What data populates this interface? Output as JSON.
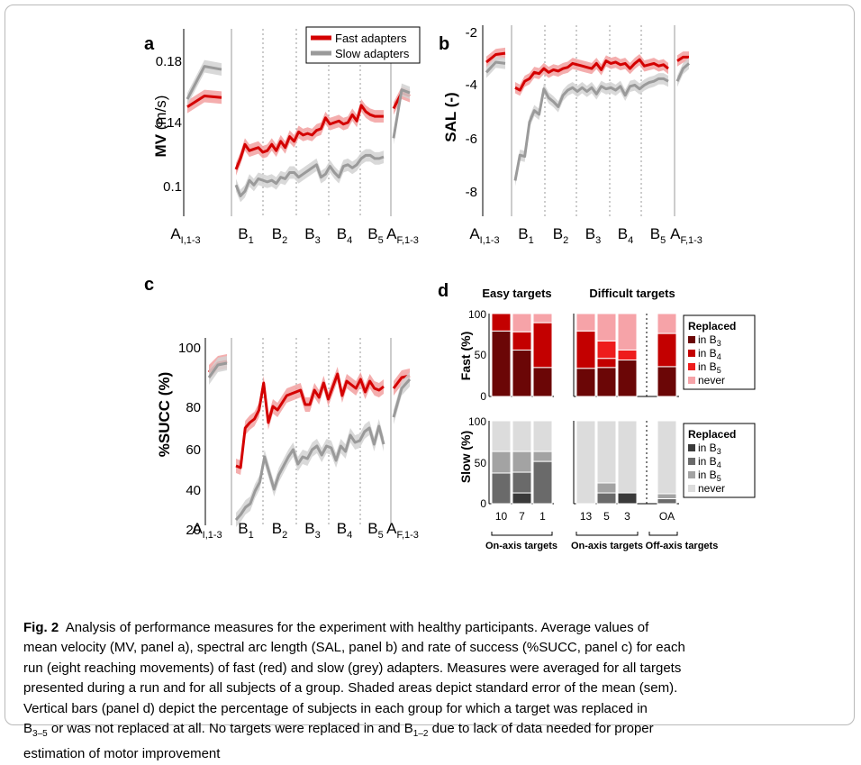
{
  "figure": {
    "panels": {
      "a": {
        "letter": "a",
        "ylabel_main": "MV",
        "ylabel_unit": " (m/s)",
        "yticks": [
          "0.18",
          "0.14",
          "0.1"
        ],
        "legend": {
          "fast": "Fast adapters",
          "slow": "Slow adapters"
        }
      },
      "b": {
        "letter": "b",
        "ylabel": "SAL (-)",
        "yticks": [
          "-2",
          "-4",
          "-6",
          "-8"
        ]
      },
      "c": {
        "letter": "c",
        "ylabel": "%SUCC (%)",
        "yticks": [
          "100",
          "80",
          "60",
          "40",
          "20"
        ]
      },
      "d": {
        "letter": "d",
        "easy_title": "Easy targets",
        "difficult_title": "Difficult targets",
        "fast_ylabel": "Fast (%)",
        "slow_ylabel": "Slow (%)",
        "yticks": [
          "100",
          "50",
          "0"
        ],
        "legend_title": "Replaced",
        "legend_items": [
          "in B",
          "in B",
          "in B",
          "never"
        ],
        "legend_subs": [
          "3",
          "4",
          "5"
        ],
        "bar_labels": [
          "10",
          "7",
          "1",
          "13",
          "5",
          "3",
          "OA"
        ],
        "group_labels": [
          "On-axis targets",
          "On-axis targets",
          "Off-axis targets"
        ]
      }
    },
    "xaxis": {
      "A_initial": {
        "main": "A",
        "sub": "I,1-3"
      },
      "blocks": [
        {
          "main": "B",
          "sub": "1"
        },
        {
          "main": "B",
          "sub": "2"
        },
        {
          "main": "B",
          "sub": "3"
        },
        {
          "main": "B",
          "sub": "4"
        },
        {
          "main": "B",
          "sub": "5"
        }
      ],
      "A_final": {
        "main": "A",
        "sub": "F,1-3"
      }
    },
    "colors": {
      "fast": "#d40000",
      "fast_band": "#f2a0a0",
      "slow": "#9a9a9a",
      "slow_band": "#d2d2d2",
      "fast_bar_dark": "#6b0606",
      "fast_bar_med": "#c30000",
      "fast_bar_red": "#ee1c1c",
      "fast_bar_pink": "#f6a3a8",
      "slow_bar_dark": "#3a3a3a",
      "slow_bar_med": "#6a6a6a",
      "slow_bar_light": "#a3a3a3",
      "slow_bar_never": "#dcdcdc"
    }
  },
  "chart_data": [
    {
      "type": "line",
      "panel": "a",
      "ylabel": "MV (m/s)",
      "ylim": [
        0.085,
        0.205
      ],
      "series": [
        {
          "name": "Fast adapters",
          "segments": [
            [
              0.155,
              0.162,
              0.161
            ],
            [
              0.115,
              0.122,
              0.131,
              0.127,
              0.128,
              0.129,
              0.126,
              0.127,
              0.131,
              0.127,
              0.133,
              0.129,
              0.136,
              0.133,
              0.139,
              0.137,
              0.138,
              0.137,
              0.14,
              0.141,
              0.148,
              0.144,
              0.145,
              0.146,
              0.144,
              0.145,
              0.15,
              0.146,
              0.156,
              0.152,
              0.15,
              0.149,
              0.149,
              0.149
            ],
            [
              0.154,
              0.164,
              0.162
            ]
          ]
        },
        {
          "name": "Slow adapters",
          "segments": [
            [
              0.16,
              0.181,
              0.179
            ],
            [
              0.105,
              0.098,
              0.101,
              0.108,
              0.105,
              0.109,
              0.108,
              0.107,
              0.108,
              0.106,
              0.11,
              0.109,
              0.113,
              0.113,
              0.11,
              0.112,
              0.114,
              0.116,
              0.118,
              0.11,
              0.112,
              0.117,
              0.113,
              0.11,
              0.117,
              0.118,
              0.116,
              0.118,
              0.122,
              0.124,
              0.124,
              0.122,
              0.122,
              0.123
            ],
            [
              0.135,
              0.166,
              0.164
            ]
          ]
        }
      ]
    },
    {
      "type": "line",
      "panel": "b",
      "ylabel": "SAL (-)",
      "ylim": [
        -9.1,
        -1.6
      ],
      "series": [
        {
          "name": "Fast adapters",
          "segments": [
            [
              -3.05,
              -2.75,
              -2.7
            ],
            [
              -4.05,
              -4.15,
              -3.8,
              -3.7,
              -3.45,
              -3.5,
              -3.3,
              -3.45,
              -3.35,
              -3.4,
              -3.3,
              -3.25,
              -3.1,
              -3.15,
              -3.2,
              -3.25,
              -3.3,
              -3.1,
              -3.35,
              -3.0,
              -3.1,
              -3.05,
              -3.15,
              -3.1,
              -3.3,
              -3.1,
              -2.95,
              -3.2,
              -3.15,
              -3.1,
              -3.2,
              -3.15,
              -3.3
            ],
            [
              -3.0,
              -2.85,
              -2.85
            ]
          ]
        },
        {
          "name": "Slow adapters",
          "segments": [
            [
              -3.45,
              -3.05,
              -3.1
            ],
            [
              -7.7,
              -6.7,
              -6.75,
              -5.4,
              -4.95,
              -5.1,
              -4.1,
              -4.45,
              -4.6,
              -4.8,
              -4.35,
              -4.15,
              -4.05,
              -4.2,
              -4.05,
              -4.2,
              -4.05,
              -4.3,
              -4.0,
              -4.1,
              -4.05,
              -4.15,
              -4.0,
              -4.35,
              -4.0,
              -3.95,
              -4.1,
              -3.95,
              -3.85,
              -3.8,
              -3.7,
              -3.7,
              -3.8
            ],
            [
              -3.8,
              -3.3,
              -3.1
            ]
          ]
        }
      ]
    },
    {
      "type": "line",
      "panel": "c",
      "ylabel": "%SUCC (%)",
      "ylim": [
        8,
        112
      ],
      "series": [
        {
          "name": "Fast adapters",
          "segments": [
            [
              93,
              98,
              99
            ],
            [
              41,
              40,
              62,
              65,
              67,
              72,
              87,
              65,
              74,
              72,
              76,
              80,
              81,
              82,
              83,
              75,
              75,
              83,
              79,
              87,
              78,
              85,
              92,
              80,
              88,
              86,
              84,
              89,
              82,
              88,
              84,
              83,
              85
            ],
            [
              84,
              90,
              91
            ]
          ]
        },
        {
          "name": "Slow adapters",
          "segments": [
            [
              90,
              97,
              98
            ],
            [
              11,
              14,
              18,
              20,
              27,
              32,
              46,
              37,
              28,
              36,
              41,
              46,
              50,
              42,
              46,
              45,
              50,
              52,
              47,
              52,
              51,
              44,
              52,
              49,
              58,
              54,
              55,
              60,
              62,
              53,
              63,
              53
            ],
            [
              68,
              84,
              89
            ]
          ]
        }
      ]
    },
    {
      "type": "bar",
      "panel": "d",
      "stacked": true,
      "ylim": [
        0,
        100
      ],
      "categories": [
        "10",
        "7",
        "1",
        "13",
        "5",
        "3",
        "OA"
      ],
      "groups": [
        "Easy targets",
        "Difficult targets"
      ],
      "series_order": [
        "in B3",
        "in B4",
        "in B5",
        "never"
      ],
      "fast": [
        [
          79,
          21,
          0,
          0
        ],
        [
          56,
          22,
          0,
          22
        ],
        [
          35,
          54,
          0,
          11
        ],
        [
          34,
          45,
          0,
          21
        ],
        [
          35,
          11,
          21,
          33
        ],
        [
          44,
          0,
          12,
          44
        ],
        [
          36,
          40,
          0,
          24
        ]
      ],
      "slow": [
        [
          0,
          37,
          26,
          37
        ],
        [
          13,
          25,
          25,
          37
        ],
        [
          0,
          51,
          12,
          37
        ],
        [
          0,
          0,
          0,
          100
        ],
        [
          0,
          13,
          12,
          75
        ],
        [
          13,
          0,
          0,
          87
        ],
        [
          0,
          6,
          6,
          88
        ]
      ]
    }
  ],
  "caption": {
    "fig_label": "Fig. 2",
    "lines": [
      "Analysis of performance measures for the experiment with healthy participants. Average values of",
      "mean velocity (MV, panel a), spectral arc length (SAL, panel b) and rate of success (%SUCC, panel c) for each",
      "run (eight reaching movements) of fast (red) and slow (grey) adapters. Measures were averaged for all targets",
      "presented during a run and for all subjects of a group. Shaded areas depict standard error of the mean (sem).",
      "Vertical bars (panel d) depict the percentage of subjects in each group for which a target was replaced in",
      "or was not replaced at all. No targets were replaced in and",
      "due to lack of data needed for proper",
      "estimation of motor improvement"
    ],
    "sub_B35": {
      "main": "B",
      "sub": "3–5"
    },
    "sub_B12": {
      "main": "B",
      "sub": "1–2"
    }
  }
}
